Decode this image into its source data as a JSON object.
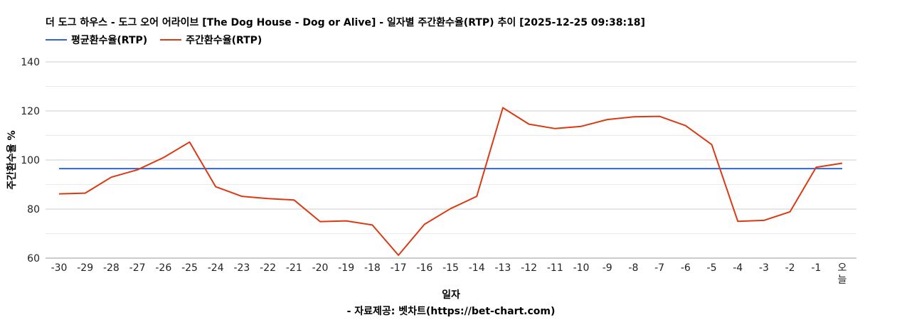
{
  "colors": {
    "avg": "#3366cc",
    "weekly": "#dc3912",
    "grid": "#cccccc",
    "minor_grid": "#ebebeb"
  },
  "chart_data": {
    "type": "line",
    "title": "더 도그 하우스 - 도그 오어 어라이브 [The Dog House - Dog or Alive] - 일자별 주간환수율(RTP) 추이 [2025-12-25 09:38:18]",
    "xlabel": "일자",
    "ylabel": "주간환수율 %",
    "source": "- 자료제공: 벳차트(https://bet-chart.com)",
    "legend_position": "top-left",
    "grid": true,
    "ylim": [
      60,
      140
    ],
    "yticks": [
      60,
      80,
      100,
      120,
      140
    ],
    "categories": [
      "-30",
      "-29",
      "-28",
      "-27",
      "-26",
      "-25",
      "-24",
      "-23",
      "-22",
      "-21",
      "-20",
      "-19",
      "-18",
      "-17",
      "-16",
      "-15",
      "-14",
      "-13",
      "-12",
      "-11",
      "-10",
      "-9",
      "-8",
      "-7",
      "-6",
      "-5",
      "-4",
      "-3",
      "-2",
      "-1",
      "오늘"
    ],
    "series": [
      {
        "name": "평균환수율(RTP)",
        "color": "#3366cc",
        "values": [
          96.5,
          96.5,
          96.5,
          96.5,
          96.5,
          96.5,
          96.5,
          96.5,
          96.5,
          96.5,
          96.5,
          96.5,
          96.5,
          96.5,
          96.5,
          96.5,
          96.5,
          96.5,
          96.5,
          96.5,
          96.5,
          96.5,
          96.5,
          96.5,
          96.5,
          96.5,
          96.5,
          96.5,
          96.5,
          96.5,
          96.5
        ]
      },
      {
        "name": "주간환수율(RTP)",
        "color": "#dc3912",
        "values": [
          86.2,
          86.5,
          93.0,
          96.0,
          101.0,
          107.3,
          89.1,
          85.2,
          84.3,
          83.7,
          74.9,
          75.2,
          73.5,
          61.2,
          73.8,
          80.2,
          85.2,
          121.3,
          114.6,
          112.8,
          113.7,
          116.5,
          117.6,
          117.8,
          114.0,
          106.3,
          75.0,
          75.4,
          78.9,
          97.0,
          98.7
        ]
      }
    ]
  }
}
